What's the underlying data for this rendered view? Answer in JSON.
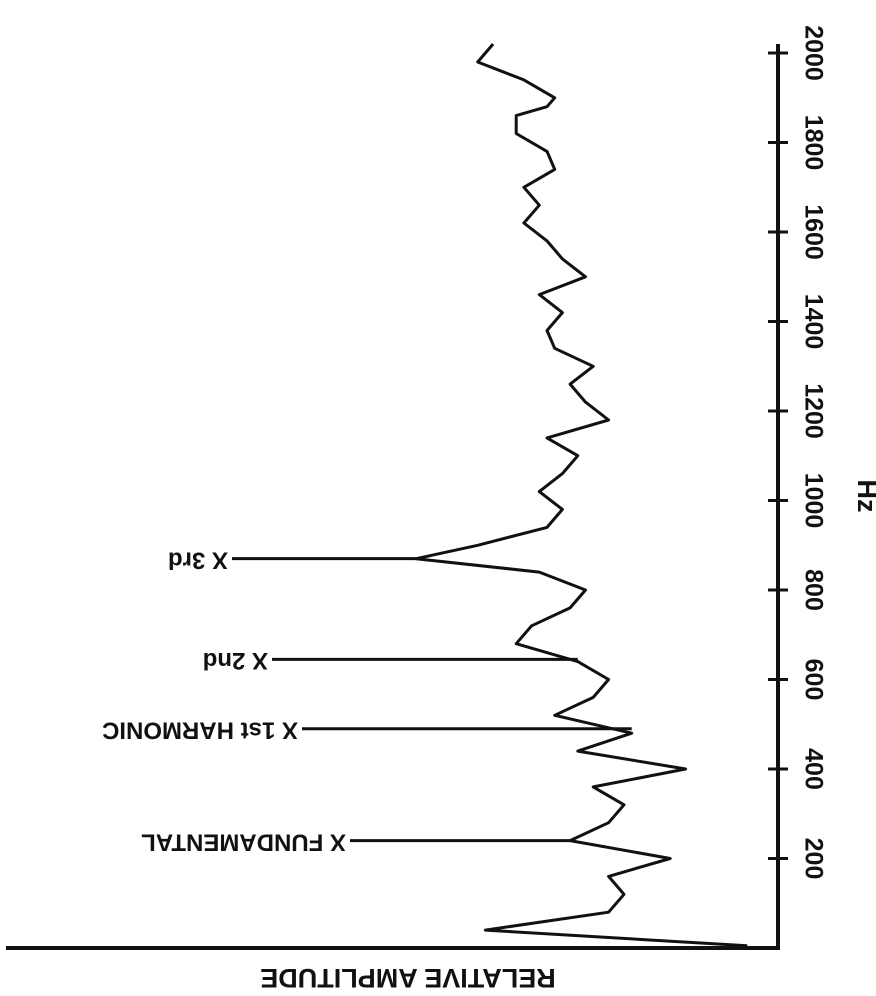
{
  "chart_data": {
    "type": "line",
    "title": "",
    "xlabel": "Hz",
    "ylabel": "RELATIVE AMPLITUDE",
    "xlim": [
      0,
      2000
    ],
    "ticks": [
      {
        "value": 200,
        "label": "200"
      },
      {
        "value": 400,
        "label": "400"
      },
      {
        "value": 600,
        "label": "600"
      },
      {
        "value": 800,
        "label": "800"
      },
      {
        "value": 1000,
        "label": "1000"
      },
      {
        "value": 1200,
        "label": "1200"
      },
      {
        "value": 1400,
        "label": "1400"
      },
      {
        "value": 1600,
        "label": "1600"
      },
      {
        "value": 1800,
        "label": "1800"
      },
      {
        "value": 2000,
        "label": "2000"
      }
    ],
    "annotations": [
      {
        "text": "X FUNDAMENTAL",
        "x": 240
      },
      {
        "text": "X 1st HARMONIC",
        "x": 490
      },
      {
        "text": "X 2nd",
        "x": 645
      },
      {
        "text": "X 3rd",
        "x": 870
      }
    ],
    "series": [
      {
        "values_note_free": true,
        "x": [
          5,
          40,
          80,
          120,
          160,
          200,
          240,
          280,
          320,
          360,
          400,
          440,
          480,
          520,
          560,
          600,
          640,
          680,
          720,
          760,
          800,
          840,
          870,
          900,
          940,
          980,
          1020,
          1060,
          1100,
          1140,
          1180,
          1220,
          1260,
          1300,
          1340,
          1380,
          1420,
          1460,
          1500,
          1540,
          1580,
          1620,
          1660,
          1700,
          1740,
          1780,
          1820,
          1860,
          1880,
          1900,
          1940,
          1980,
          2020
        ],
        "y": [
          0.04,
          0.38,
          0.22,
          0.2,
          0.22,
          0.14,
          0.27,
          0.22,
          0.2,
          0.24,
          0.12,
          0.26,
          0.19,
          0.29,
          0.24,
          0.22,
          0.26,
          0.34,
          0.32,
          0.27,
          0.25,
          0.31,
          0.47,
          0.39,
          0.3,
          0.28,
          0.31,
          0.28,
          0.26,
          0.3,
          0.22,
          0.25,
          0.27,
          0.24,
          0.29,
          0.3,
          0.28,
          0.31,
          0.25,
          0.28,
          0.3,
          0.33,
          0.31,
          0.33,
          0.29,
          0.3,
          0.34,
          0.34,
          0.3,
          0.29,
          0.33,
          0.39,
          0.37
        ]
      }
    ],
    "grid": false,
    "orientation": "rotated-180"
  }
}
